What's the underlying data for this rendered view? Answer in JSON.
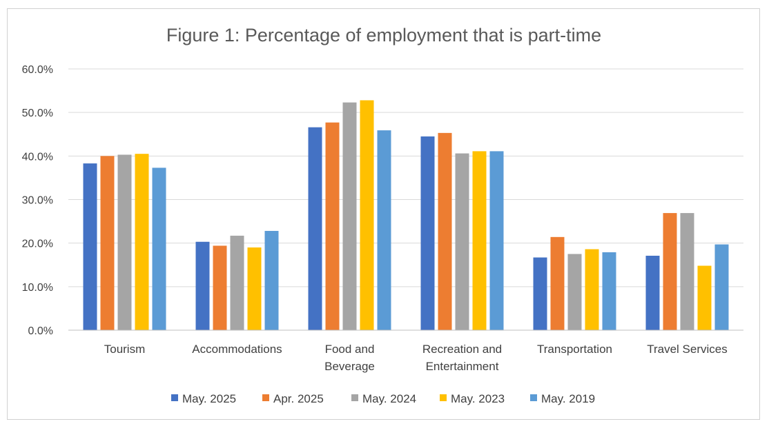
{
  "chart_data": {
    "type": "bar",
    "title": "Figure 1: Percentage of employment that is part-time",
    "categories": [
      [
        "Tourism"
      ],
      [
        "Accommodations"
      ],
      [
        "Food and",
        "Beverage"
      ],
      [
        "Recreation and",
        "Entertainment"
      ],
      [
        "Transportation"
      ],
      [
        "Travel Services"
      ]
    ],
    "series": [
      {
        "name": "May. 2025",
        "color": "#4472C4",
        "values": [
          38.3,
          20.3,
          46.6,
          44.5,
          16.7,
          17.1
        ]
      },
      {
        "name": "Apr. 2025",
        "color": "#ED7D31",
        "values": [
          40.0,
          19.4,
          47.7,
          45.3,
          21.4,
          26.9
        ]
      },
      {
        "name": "May. 2024",
        "color": "#A5A5A5",
        "values": [
          40.3,
          21.7,
          52.3,
          40.6,
          17.5,
          26.9
        ]
      },
      {
        "name": "May. 2023",
        "color": "#FFC000",
        "values": [
          40.5,
          19.0,
          52.8,
          41.1,
          18.6,
          14.8
        ]
      },
      {
        "name": "May. 2019",
        "color": "#5B9BD5",
        "values": [
          37.3,
          22.8,
          45.9,
          41.1,
          17.9,
          19.7
        ]
      }
    ],
    "ylim": [
      0,
      60
    ],
    "yticks": [
      0,
      10,
      20,
      30,
      40,
      50,
      60
    ],
    "ytick_labels": [
      "0.0%",
      "10.0%",
      "20.0%",
      "30.0%",
      "40.0%",
      "50.0%",
      "60.0%"
    ],
    "grid": true,
    "legend_position": "bottom"
  }
}
